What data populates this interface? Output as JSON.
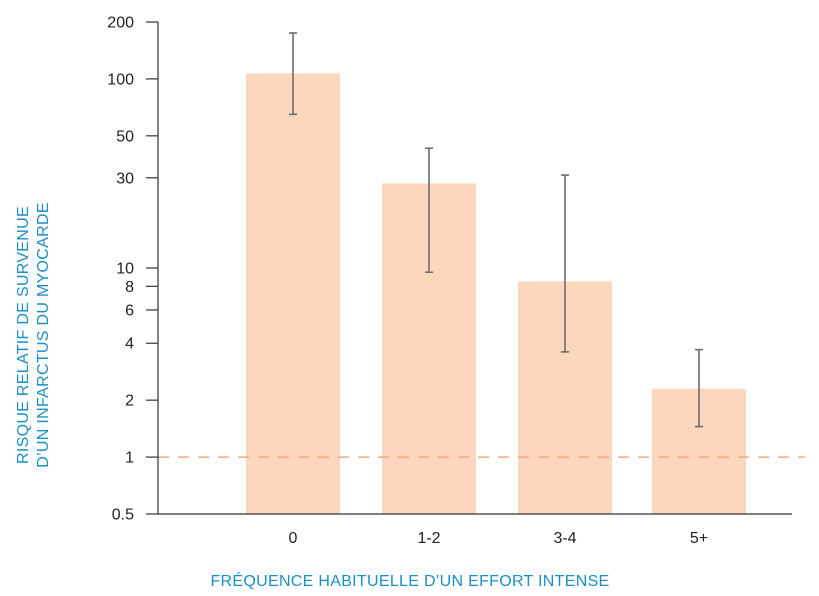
{
  "chart_data": {
    "type": "bar",
    "xlabel": "FRÉQUENCE HABITUELLE D’UN EFFORT INTENSE",
    "ylabel_lines": [
      "RISQUE RELATIF DE SURVENUE",
      "D’UN INFARCTUS DU MYOCARDE"
    ],
    "categories": [
      "0",
      "1-2",
      "3-4",
      "5+"
    ],
    "values": [
      107,
      28,
      8.5,
      2.3
    ],
    "error_low": [
      65,
      9.5,
      3.6,
      1.45
    ],
    "error_high": [
      175,
      43,
      31,
      3.7
    ],
    "y_tick_labels": [
      "200",
      "100",
      "50",
      "30",
      "10",
      "8",
      "6",
      "4",
      "2",
      "1",
      "0.5"
    ],
    "y_tick_values": [
      200,
      100,
      50,
      30,
      10,
      8,
      6,
      4,
      2,
      1,
      0.5
    ],
    "ylim": [
      0.5,
      200
    ],
    "reference_line": 1,
    "colors": {
      "bar": "#fcd7bd",
      "error_bar": "#6e6e6e",
      "reference_line": "#f4a582",
      "axis": "#333333",
      "axis_title": "#1a8fc6"
    }
  }
}
